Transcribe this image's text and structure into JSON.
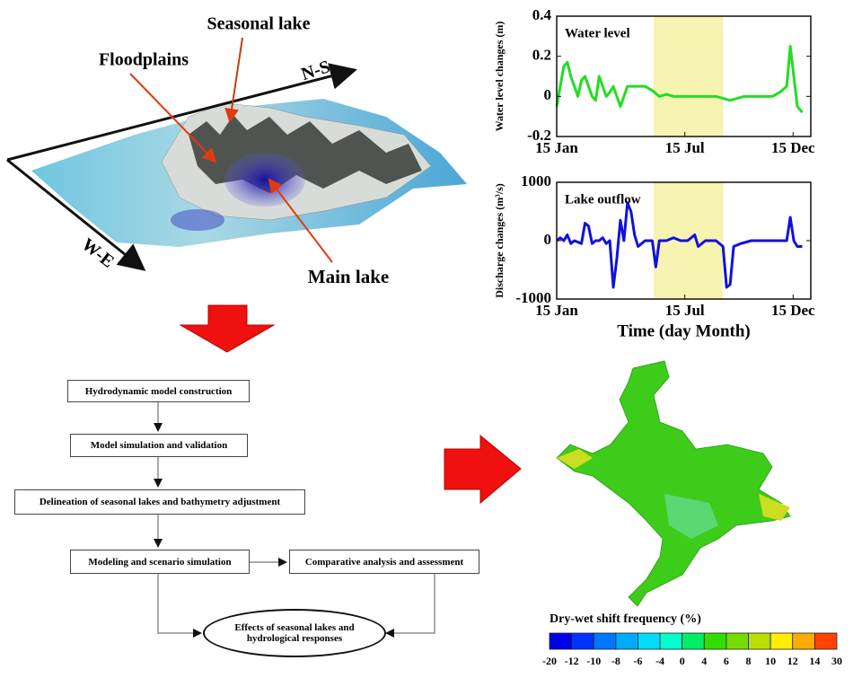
{
  "chart_data": [
    {
      "type": "line",
      "title": "Water level",
      "ylabel": "Water level changes (m)",
      "xlim": [
        15,
        374
      ],
      "ylim": [
        -0.2,
        0.4
      ],
      "xticks": [
        {
          "value": 15,
          "label": "15 Jan"
        },
        {
          "value": 196,
          "label": "15 Jul"
        },
        {
          "value": 349,
          "label": "15 Dec"
        }
      ],
      "yticks": [
        -0.2,
        0,
        0.2,
        0.4
      ],
      "highlight": [
        152,
        250
      ],
      "highlight_color": "#f7f3b0",
      "series": [
        {
          "name": "Water level",
          "color": "#22dd22",
          "x": [
            15,
            20,
            25,
            30,
            35,
            40,
            45,
            50,
            55,
            60,
            65,
            70,
            75,
            80,
            85,
            90,
            95,
            100,
            105,
            110,
            115,
            120,
            130,
            140,
            150,
            160,
            170,
            180,
            200,
            220,
            240,
            260,
            280,
            300,
            320,
            330,
            340,
            345,
            350,
            355,
            362
          ],
          "values": [
            -0.05,
            0.05,
            0.15,
            0.17,
            0.1,
            0.05,
            0.0,
            0.08,
            0.1,
            0.05,
            0.0,
            -0.02,
            0.1,
            0.05,
            0.0,
            0.02,
            0.05,
            0.0,
            -0.05,
            0.0,
            0.05,
            0.05,
            0.05,
            0.05,
            0.03,
            0.0,
            0.01,
            0.0,
            0.0,
            0.0,
            0.0,
            -0.02,
            0.0,
            0.0,
            0.0,
            0.02,
            0.05,
            0.25,
            0.1,
            -0.05,
            -0.08
          ]
        }
      ]
    },
    {
      "type": "line",
      "title": "Lake outflow",
      "ylabel": "Discharge changes (m³/s)",
      "xlabel": "Time (day Month)",
      "xlim": [
        15,
        374
      ],
      "ylim": [
        -1000,
        1000
      ],
      "xticks": [
        {
          "value": 15,
          "label": "15 Jan"
        },
        {
          "value": 196,
          "label": "15 Jul"
        },
        {
          "value": 349,
          "label": "15 Dec"
        }
      ],
      "yticks": [
        -1000,
        0,
        1000
      ],
      "highlight": [
        152,
        250
      ],
      "highlight_color": "#f7f3b0",
      "series": [
        {
          "name": "Lake outflow",
          "color": "#1111dd",
          "x": [
            15,
            20,
            25,
            30,
            35,
            40,
            50,
            55,
            60,
            65,
            70,
            75,
            80,
            85,
            90,
            95,
            100,
            105,
            110,
            115,
            120,
            125,
            130,
            140,
            150,
            155,
            160,
            170,
            180,
            190,
            200,
            210,
            215,
            225,
            240,
            250,
            255,
            260,
            265,
            275,
            290,
            300,
            320,
            340,
            345,
            350,
            355,
            362
          ],
          "values": [
            0,
            50,
            0,
            100,
            -50,
            0,
            -50,
            300,
            250,
            -50,
            0,
            0,
            50,
            -50,
            0,
            -800,
            -300,
            350,
            0,
            650,
            500,
            100,
            -100,
            0,
            0,
            -450,
            0,
            0,
            50,
            0,
            0,
            100,
            -100,
            0,
            0,
            -100,
            -800,
            -750,
            -100,
            -50,
            0,
            0,
            0,
            0,
            400,
            0,
            -100,
            -100
          ]
        }
      ]
    }
  ],
  "terrain": {
    "labels": [
      "Seasonal lake",
      "Floodplains",
      "N-S",
      "W-E",
      "Main lake"
    ]
  },
  "flowchart": {
    "nodes": [
      "Hydrodynamic model construction",
      "Model simulation and validation",
      "Delineation of seasonal lakes and bathymetry adjustment",
      "Modeling and scenario simulation",
      "Comparative analysis and assessment",
      "Effects of seasonal lakes and hydrological responses"
    ]
  },
  "map": {
    "colorbar": {
      "title": "Dry-wet shift frequency (%)",
      "labels": [
        -20,
        -12,
        -10,
        -8,
        -6,
        -4,
        0,
        4,
        6,
        8,
        10,
        12,
        14,
        30
      ],
      "colors": [
        "#0000ee",
        "#0033ff",
        "#0077ff",
        "#00aaff",
        "#00ddff",
        "#00ffcc",
        "#00ee66",
        "#33dd00",
        "#77dd00",
        "#bbdd00",
        "#ffee00",
        "#ffaa00",
        "#ff4400"
      ]
    }
  }
}
